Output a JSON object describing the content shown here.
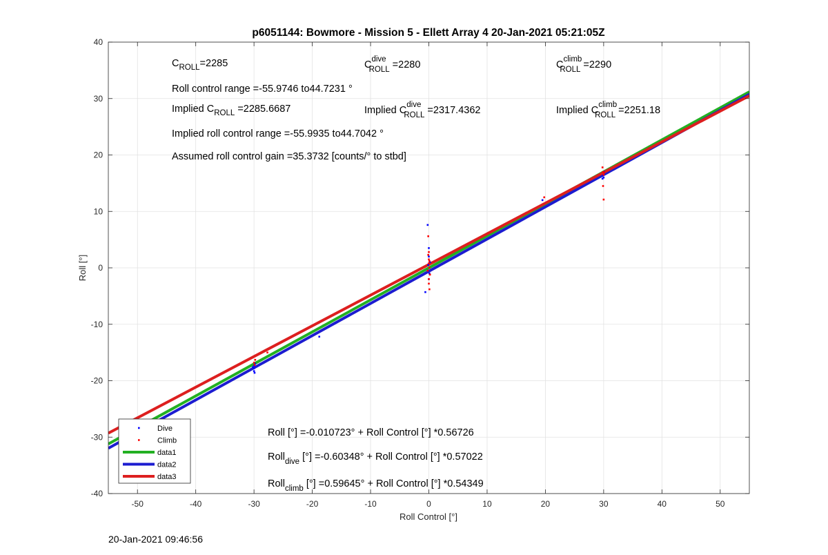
{
  "footer": {
    "timestamp": "20-Jan-2021 09:46:56"
  },
  "chart_data": {
    "type": "scatter",
    "title": "p6051144: Bowmore - Mission 5 - Ellett Array 4 20-Jan-2021 05:21:05Z",
    "xlabel": "Roll Control [°]",
    "ylabel": "Roll [°]",
    "xlim": [
      -55,
      55
    ],
    "ylim": [
      -40,
      40
    ],
    "xticks": [
      -50,
      -40,
      -30,
      -20,
      -10,
      0,
      10,
      20,
      30,
      40,
      50
    ],
    "yticks": [
      -40,
      -30,
      -20,
      -10,
      0,
      10,
      20,
      30,
      40
    ],
    "grid": true,
    "legend_position": "bottom-left",
    "series": [
      {
        "name": "Dive",
        "kind": "points",
        "color": "#0000ff",
        "x": [
          -30,
          -30,
          -30,
          -29.8,
          -29.9,
          -30.2,
          -18.8,
          -0.2,
          0,
          0,
          -0.1,
          0.1,
          0,
          -0.2,
          0.2,
          -0.6,
          19.5,
          29.8,
          29.9,
          30,
          30.1,
          -50,
          -48
        ],
        "y": [
          -17.3,
          -17.8,
          -18.3,
          -17.0,
          -18.6,
          -17.6,
          -12.2,
          7.6,
          3.5,
          2.0,
          0.5,
          -1.0,
          -2.0,
          -0.5,
          1.0,
          -4.3,
          12.0,
          15.8,
          16.4,
          16.0,
          17.0,
          -28.5,
          -27.5
        ]
      },
      {
        "name": "Climb",
        "kind": "points",
        "color": "#ff0000",
        "x": [
          -29.8,
          -30,
          -29.9,
          -27.7,
          -0.1,
          0,
          0,
          0.1,
          -0.2,
          0.2,
          0,
          -0.1,
          0.1,
          0,
          0.1,
          0,
          19.8,
          29.8,
          29.9,
          30,
          30.1,
          29.9,
          30
        ],
        "y": [
          -16.3,
          -16.8,
          -17.2,
          -15.0,
          2.3,
          1.5,
          0.8,
          0,
          -0.5,
          -1.2,
          -2.0,
          5.6,
          -3.8,
          2.8,
          1.2,
          -2.8,
          12.5,
          17.8,
          17.0,
          16.5,
          16.9,
          14.5,
          12.1
        ]
      },
      {
        "name": "data1",
        "kind": "line",
        "color": "#22b022",
        "x": [
          -55,
          55
        ],
        "y": [
          -31.21,
          31.19
        ]
      },
      {
        "name": "data2",
        "kind": "line",
        "color": "#1c1cd0",
        "x": [
          -55,
          55
        ],
        "y": [
          -31.97,
          30.76
        ]
      },
      {
        "name": "data3",
        "kind": "line",
        "color": "#dd1f1f",
        "x": [
          -55,
          55
        ],
        "y": [
          -29.3,
          30.49
        ]
      }
    ],
    "annotations": {
      "c_roll": {
        "base": "C",
        "sub": "ROLL",
        "value": "=2285"
      },
      "c_roll_dive": {
        "base": "C",
        "sup": "dive",
        "sub": "ROLL",
        "value": " =2280"
      },
      "c_roll_climb": {
        "base": "C",
        "sup": "climb",
        "sub": "ROLL",
        "value": " =2290"
      },
      "roll_range": "Roll control range =-55.9746 to44.7231 °",
      "implied_c_roll": {
        "prefix": "Implied C",
        "sub": "ROLL",
        "value": " =2285.6687"
      },
      "implied_c_roll_dive": {
        "prefix": "Implied C",
        "sup": "dive",
        "sub": "ROLL",
        "value": " =2317.4362"
      },
      "implied_c_roll_climb": {
        "prefix": "Implied C",
        "sup": "climb",
        "sub": "ROLL",
        "value": " =2251.18"
      },
      "implied_range": "Implied roll control range =-55.9935 to44.7042 °",
      "gain": "Assumed roll control gain =35.3732 [counts/° to stbd]",
      "fit_all": "Roll [°] =-0.010723° + Roll Control [°] *0.56726",
      "fit_dive": {
        "base": "Roll",
        "sub": "dive",
        "value": " [°] =-0.60348° + Roll Control [°] *0.57022"
      },
      "fit_climb": {
        "base": "Roll",
        "sub": "climb",
        "value": " [°] =0.59645° + Roll Control [°] *0.54349"
      }
    }
  }
}
